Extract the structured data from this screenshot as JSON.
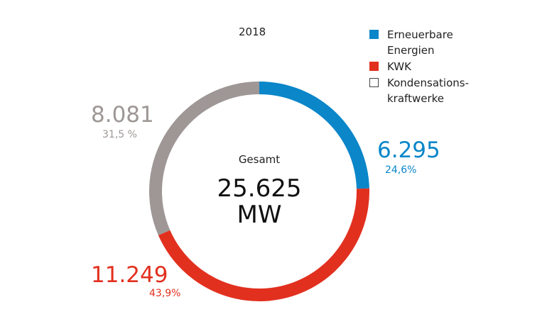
{
  "chart_data": {
    "type": "pie",
    "variant": "donut",
    "title": "2018",
    "center": {
      "label": "Gesamt",
      "value": "25.625",
      "unit": "MW"
    },
    "legend_position": "top-right",
    "slices": [
      {
        "name": "Erneuerbare\nEnergien",
        "value": 6295,
        "value_label": "6.295",
        "percent_label": "24,6%",
        "color": "#0a86c9"
      },
      {
        "name": "KWK",
        "value": 11249,
        "value_label": "11.249",
        "percent_label": "43,9%",
        "color": "#e2301f"
      },
      {
        "name": "Kondensations-\nkraftwerke",
        "value": 8081,
        "value_label": "8.081",
        "percent_label": "31,5 %",
        "color": "#9e9796"
      }
    ]
  }
}
